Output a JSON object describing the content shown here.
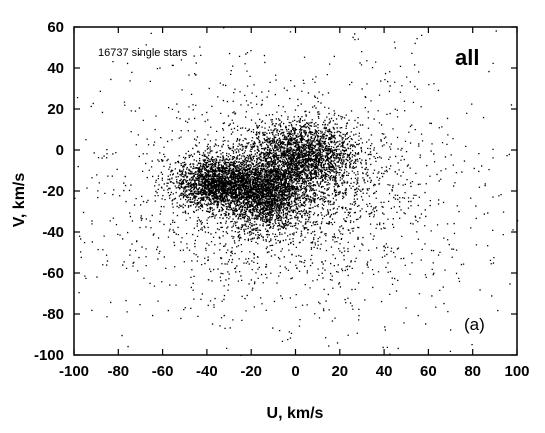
{
  "chart_data": {
    "type": "scatter",
    "xlabel": "U, km/s",
    "ylabel": "V, km/s",
    "xlim": [
      -100,
      100
    ],
    "ylim": [
      -100,
      60
    ],
    "xticks": [
      -100,
      -80,
      -60,
      -40,
      -20,
      0,
      20,
      40,
      60,
      80,
      100
    ],
    "yticks": [
      -100,
      -80,
      -60,
      -40,
      -20,
      0,
      20,
      40,
      60
    ],
    "grid": false,
    "legend": "none",
    "series_color": "#000000",
    "annotations": {
      "count_label": "16737 single stars",
      "sample_label": "all",
      "panel_label": "(a)"
    },
    "density_components": [
      {
        "weight": 0.22,
        "mean": [
          -35,
          -16
        ],
        "sd": [
          10,
          6
        ]
      },
      {
        "weight": 0.2,
        "mean": [
          -14,
          -22
        ],
        "sd": [
          9,
          8
        ]
      },
      {
        "weight": 0.2,
        "mean": [
          4,
          -2
        ],
        "sd": [
          12,
          8
        ]
      },
      {
        "weight": 0.12,
        "mean": [
          -8,
          -12
        ],
        "sd": [
          18,
          10
        ]
      },
      {
        "weight": 0.16,
        "mean": [
          -6,
          -22
        ],
        "sd": [
          35,
          25
        ]
      },
      {
        "weight": 0.1,
        "mean": [
          -5,
          -25
        ],
        "sd": [
          55,
          40
        ]
      }
    ]
  }
}
